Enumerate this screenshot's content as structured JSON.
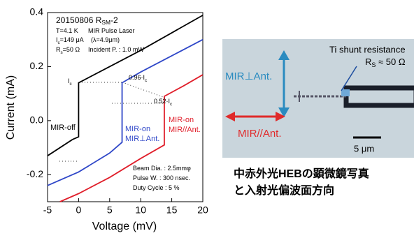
{
  "chart_data": {
    "type": "line",
    "xlabel": "Voltage (mV)",
    "ylabel": "Current (mA)",
    "xlim": [
      -5,
      20
    ],
    "xticks": [
      -5,
      0,
      5,
      10,
      15,
      20
    ],
    "ylim": [
      -0.3,
      0.4
    ],
    "yticks": [
      -0.2,
      {
        "value": 0,
        "label": "0.0"
      },
      0.2,
      0.4
    ],
    "series": [
      {
        "name": [
          "MIR-off"
        ],
        "color": "#000000",
        "x": [
          -5,
          -1,
          0,
          0,
          5,
          10,
          15,
          20
        ],
        "values": [
          -0.13,
          -0.07,
          -0.06,
          0.14,
          0.2,
          0.26,
          0.325,
          0.39
        ]
      },
      {
        "name": [
          "MIR-on",
          "MIR⊥Ant."
        ],
        "color": "#2f47c8",
        "x": [
          -5,
          0,
          5,
          7,
          7,
          10,
          15,
          20
        ],
        "values": [
          -0.24,
          -0.19,
          -0.12,
          -0.08,
          0.14,
          0.18,
          0.24,
          0.3
        ]
      },
      {
        "name": [
          "MIR-on",
          "MIR//Ant."
        ],
        "color": "#e01e2a",
        "x": [
          -3,
          0,
          5,
          10,
          13.8,
          13.8,
          17,
          20
        ],
        "values": [
          -0.3,
          -0.27,
          -0.21,
          -0.14,
          -0.09,
          0.09,
          0.13,
          0.17
        ]
      }
    ],
    "annotations": [
      [
        "20150806 R",
        "SM",
        "-2"
      ],
      [
        "T=4.1 K"
      ],
      [
        "I",
        "c",
        "=149 μA"
      ],
      [
        "R",
        "s",
        "=50 Ω"
      ],
      [
        "MIR Pulse Laser"
      ],
      [
        "(λ=4.9μm)"
      ],
      [
        "Incident P. : 1.0 mW"
      ],
      [
        "I",
        "c"
      ],
      [
        "0.96·I",
        "c"
      ],
      [
        "0.52·I",
        "c"
      ],
      [
        "Beam Dia. : 2.5mmφ"
      ],
      [
        "Pulse W. : 300 nsec."
      ],
      [
        "Duty Cycle : 5 %"
      ]
    ]
  },
  "photo": {
    "shunt": "Ti shunt resistance",
    "rs": [
      "R",
      "S",
      " ≈ 50 Ω"
    ],
    "perp": "MIR⊥Ant.",
    "para": "MIR//Ant.",
    "scale": "5 μm"
  },
  "caption": [
    "中赤外光HEBの顕微鏡写真",
    "と入射光偏波面方向"
  ]
}
